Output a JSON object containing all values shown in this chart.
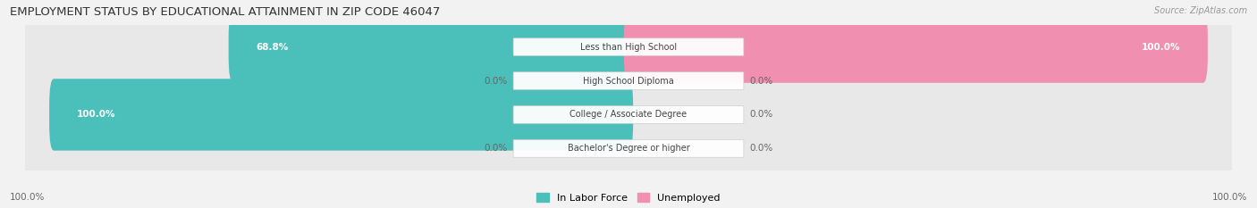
{
  "title": "EMPLOYMENT STATUS BY EDUCATIONAL ATTAINMENT IN ZIP CODE 46047",
  "source": "Source: ZipAtlas.com",
  "categories": [
    "Less than High School",
    "High School Diploma",
    "College / Associate Degree",
    "Bachelor's Degree or higher"
  ],
  "labor_force": [
    68.8,
    0.0,
    100.0,
    0.0
  ],
  "unemployed": [
    100.0,
    0.0,
    0.0,
    0.0
  ],
  "labor_force_color": "#4bbfba",
  "unemployed_color": "#f08faf",
  "bg_color": "#f2f2f2",
  "row_bg_light": "#ececec",
  "row_bg_white": "#f8f8f8",
  "title_fontsize": 9.5,
  "label_fontsize": 7.5,
  "legend_fontsize": 8,
  "left_axis_label": "100.0%",
  "right_axis_label": "100.0%"
}
